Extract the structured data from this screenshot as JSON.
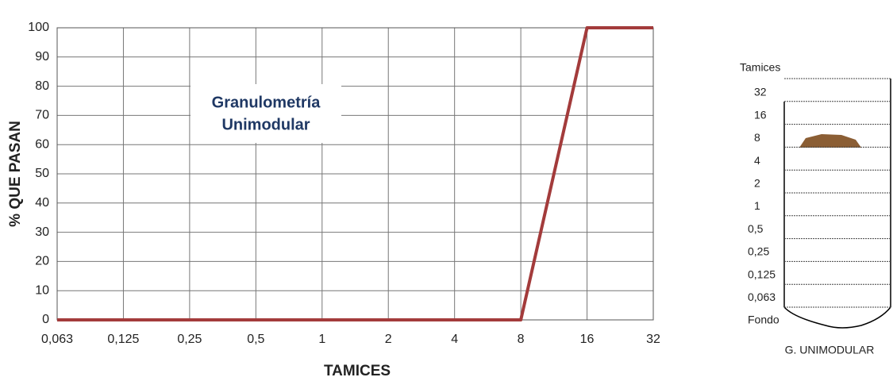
{
  "chart_data": {
    "type": "line",
    "y_label": "% QUE PASAN",
    "x_label": "TAMICES",
    "annotation": [
      "Granulometría",
      "Unimodular"
    ],
    "categories": [
      "0,063",
      "0,125",
      "0,25",
      "0,5",
      "1",
      "2",
      "4",
      "8",
      "16",
      "32"
    ],
    "values": [
      0,
      0,
      0,
      0,
      0,
      0,
      0,
      0,
      100,
      100
    ],
    "color": "#a33b3b",
    "ylim": [
      0,
      100
    ],
    "yticks": [
      0,
      10,
      20,
      30,
      40,
      50,
      60,
      70,
      80,
      90,
      100
    ],
    "grid": true
  },
  "sieve_diagram": {
    "title": "Tamices",
    "levels": [
      "32",
      "16",
      "8",
      "4",
      "2",
      "1",
      "0,5",
      "0,25",
      "0,125",
      "0,063",
      "Fondo"
    ],
    "caption": "G. UNIMODULAR"
  }
}
